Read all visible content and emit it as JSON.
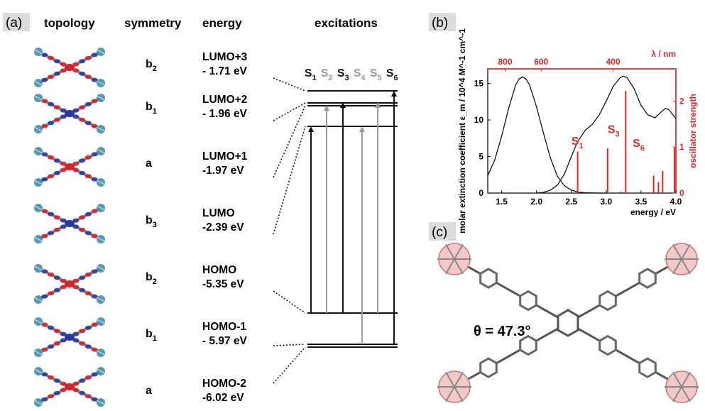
{
  "panel_a": {
    "label": "(a)",
    "headers": {
      "topology": "topology",
      "symmetry": "symmetry",
      "energy": "energy",
      "excitations": "excitations"
    },
    "orbitals": [
      {
        "sym": "b",
        "sub": "2",
        "name": "LUMO+3",
        "energy": "- 1.71 eV"
      },
      {
        "sym": "b",
        "sub": "1",
        "name": "LUMO+2",
        "energy": "- 1.96 eV"
      },
      {
        "sym": "a",
        "sub": "",
        "name": "LUMO+1",
        "energy": "-1.97 eV"
      },
      {
        "sym": "b",
        "sub": "3",
        "name": "LUMO",
        "energy": "-2.39 eV"
      },
      {
        "sym": "b",
        "sub": "2",
        "name": "HOMO",
        "energy": "-5.35 eV"
      },
      {
        "sym": "b",
        "sub": "1",
        "name": "HOMO-1",
        "energy": "- 5.97 eV"
      },
      {
        "sym": "a",
        "sub": "",
        "name": "HOMO-2",
        "energy": "-6.02 eV"
      }
    ],
    "excitations": [
      {
        "letter": "S",
        "sub": "1",
        "color": "#111111"
      },
      {
        "letter": "S",
        "sub": "2",
        "color": "#9a9a9a"
      },
      {
        "letter": "S",
        "sub": "3",
        "color": "#111111"
      },
      {
        "letter": "S",
        "sub": "4",
        "color": "#9a9a9a"
      },
      {
        "letter": "S",
        "sub": "5",
        "color": "#9a9a9a"
      },
      {
        "letter": "S",
        "sub": "6",
        "color": "#111111"
      }
    ]
  },
  "panel_b": {
    "label": "(b)"
  },
  "panel_c": {
    "label": "(c)",
    "angle_label": "θ = 47.3°"
  },
  "colors": {
    "red": "#d42a2a",
    "blue_wedge": "#7fb2e0",
    "grey_arrow": "#9a9a9a",
    "lobe_red": "#d0242a",
    "lobe_blue": "#2a3a9a"
  },
  "chart_data": {
    "type": "line",
    "title": "",
    "xlabel": "energy / eV",
    "ylabel": "molar extinction coefficient ε_m / 10^4 M^-1 cm^-1",
    "y2label": "oscillator strength",
    "x2label": "λ / nm",
    "xlim": [
      1.3,
      4.0
    ],
    "ylim": [
      0,
      17
    ],
    "y2lim": [
      0,
      2.7
    ],
    "x_ticks": [
      "1.5",
      "2.0",
      "2.5",
      "3.0",
      "3.5",
      "4.0"
    ],
    "x_tick_values": [
      1.5,
      2.0,
      2.5,
      3.0,
      3.5,
      4.0
    ],
    "y_ticks": [
      "0",
      "5",
      "10",
      "15"
    ],
    "y_tick_values": [
      0,
      5,
      10,
      15
    ],
    "y2_ticks": [
      "0",
      "1",
      "2"
    ],
    "y2_tick_values": [
      0,
      1,
      2
    ],
    "x2_ticks": [
      "800",
      "600",
      "400"
    ],
    "x2_tick_values": [
      800,
      600,
      400
    ],
    "series": [
      {
        "x": [
          1.3,
          1.4,
          1.5,
          1.6,
          1.7,
          1.75,
          1.8,
          1.85,
          1.9,
          2.0,
          2.1,
          2.2,
          2.3,
          2.4,
          2.5,
          2.6,
          2.7,
          2.8,
          2.9,
          3.0
        ],
        "values": [
          2.4,
          4.5,
          7.8,
          11.6,
          14.8,
          15.6,
          15.9,
          15.6,
          14.8,
          11.8,
          8.2,
          4.8,
          2.3,
          1.0,
          0.4,
          0.15,
          0.05,
          0.02,
          0.0,
          0.0
        ]
      },
      {
        "x": [
          2.0,
          2.1,
          2.2,
          2.3,
          2.4,
          2.5,
          2.55,
          2.6,
          2.7,
          2.8,
          2.9,
          3.0,
          3.1,
          3.2,
          3.25,
          3.3,
          3.4,
          3.5,
          3.6,
          3.7,
          3.8,
          3.85,
          3.9,
          4.0
        ],
        "values": [
          0.0,
          0.1,
          0.4,
          1.1,
          2.6,
          5.0,
          6.2,
          7.2,
          8.6,
          9.4,
          10.7,
          12.6,
          14.6,
          15.8,
          16.0,
          15.8,
          14.3,
          12.0,
          10.7,
          10.3,
          11.2,
          11.6,
          11.4,
          10.2
        ]
      }
    ],
    "sticks": [
      {
        "x": 2.59,
        "f": 0.9
      },
      {
        "x": 3.02,
        "f": 0.97
      },
      {
        "x": 3.21,
        "f": 0.03
      },
      {
        "x": 3.28,
        "f": 2.22
      },
      {
        "x": 3.68,
        "f": 0.38
      },
      {
        "x": 3.75,
        "f": 0.24
      },
      {
        "x": 3.81,
        "f": 0.48
      },
      {
        "x": 3.98,
        "f": 0.99
      }
    ],
    "stick_labels": [
      {
        "letter": "S",
        "sub": "1",
        "x": 2.5,
        "f": 1.05
      },
      {
        "letter": "S",
        "sub": "3",
        "x": 3.02,
        "f": 1.3
      },
      {
        "letter": "S",
        "sub": "6",
        "x": 3.38,
        "f": 1.0
      }
    ]
  }
}
